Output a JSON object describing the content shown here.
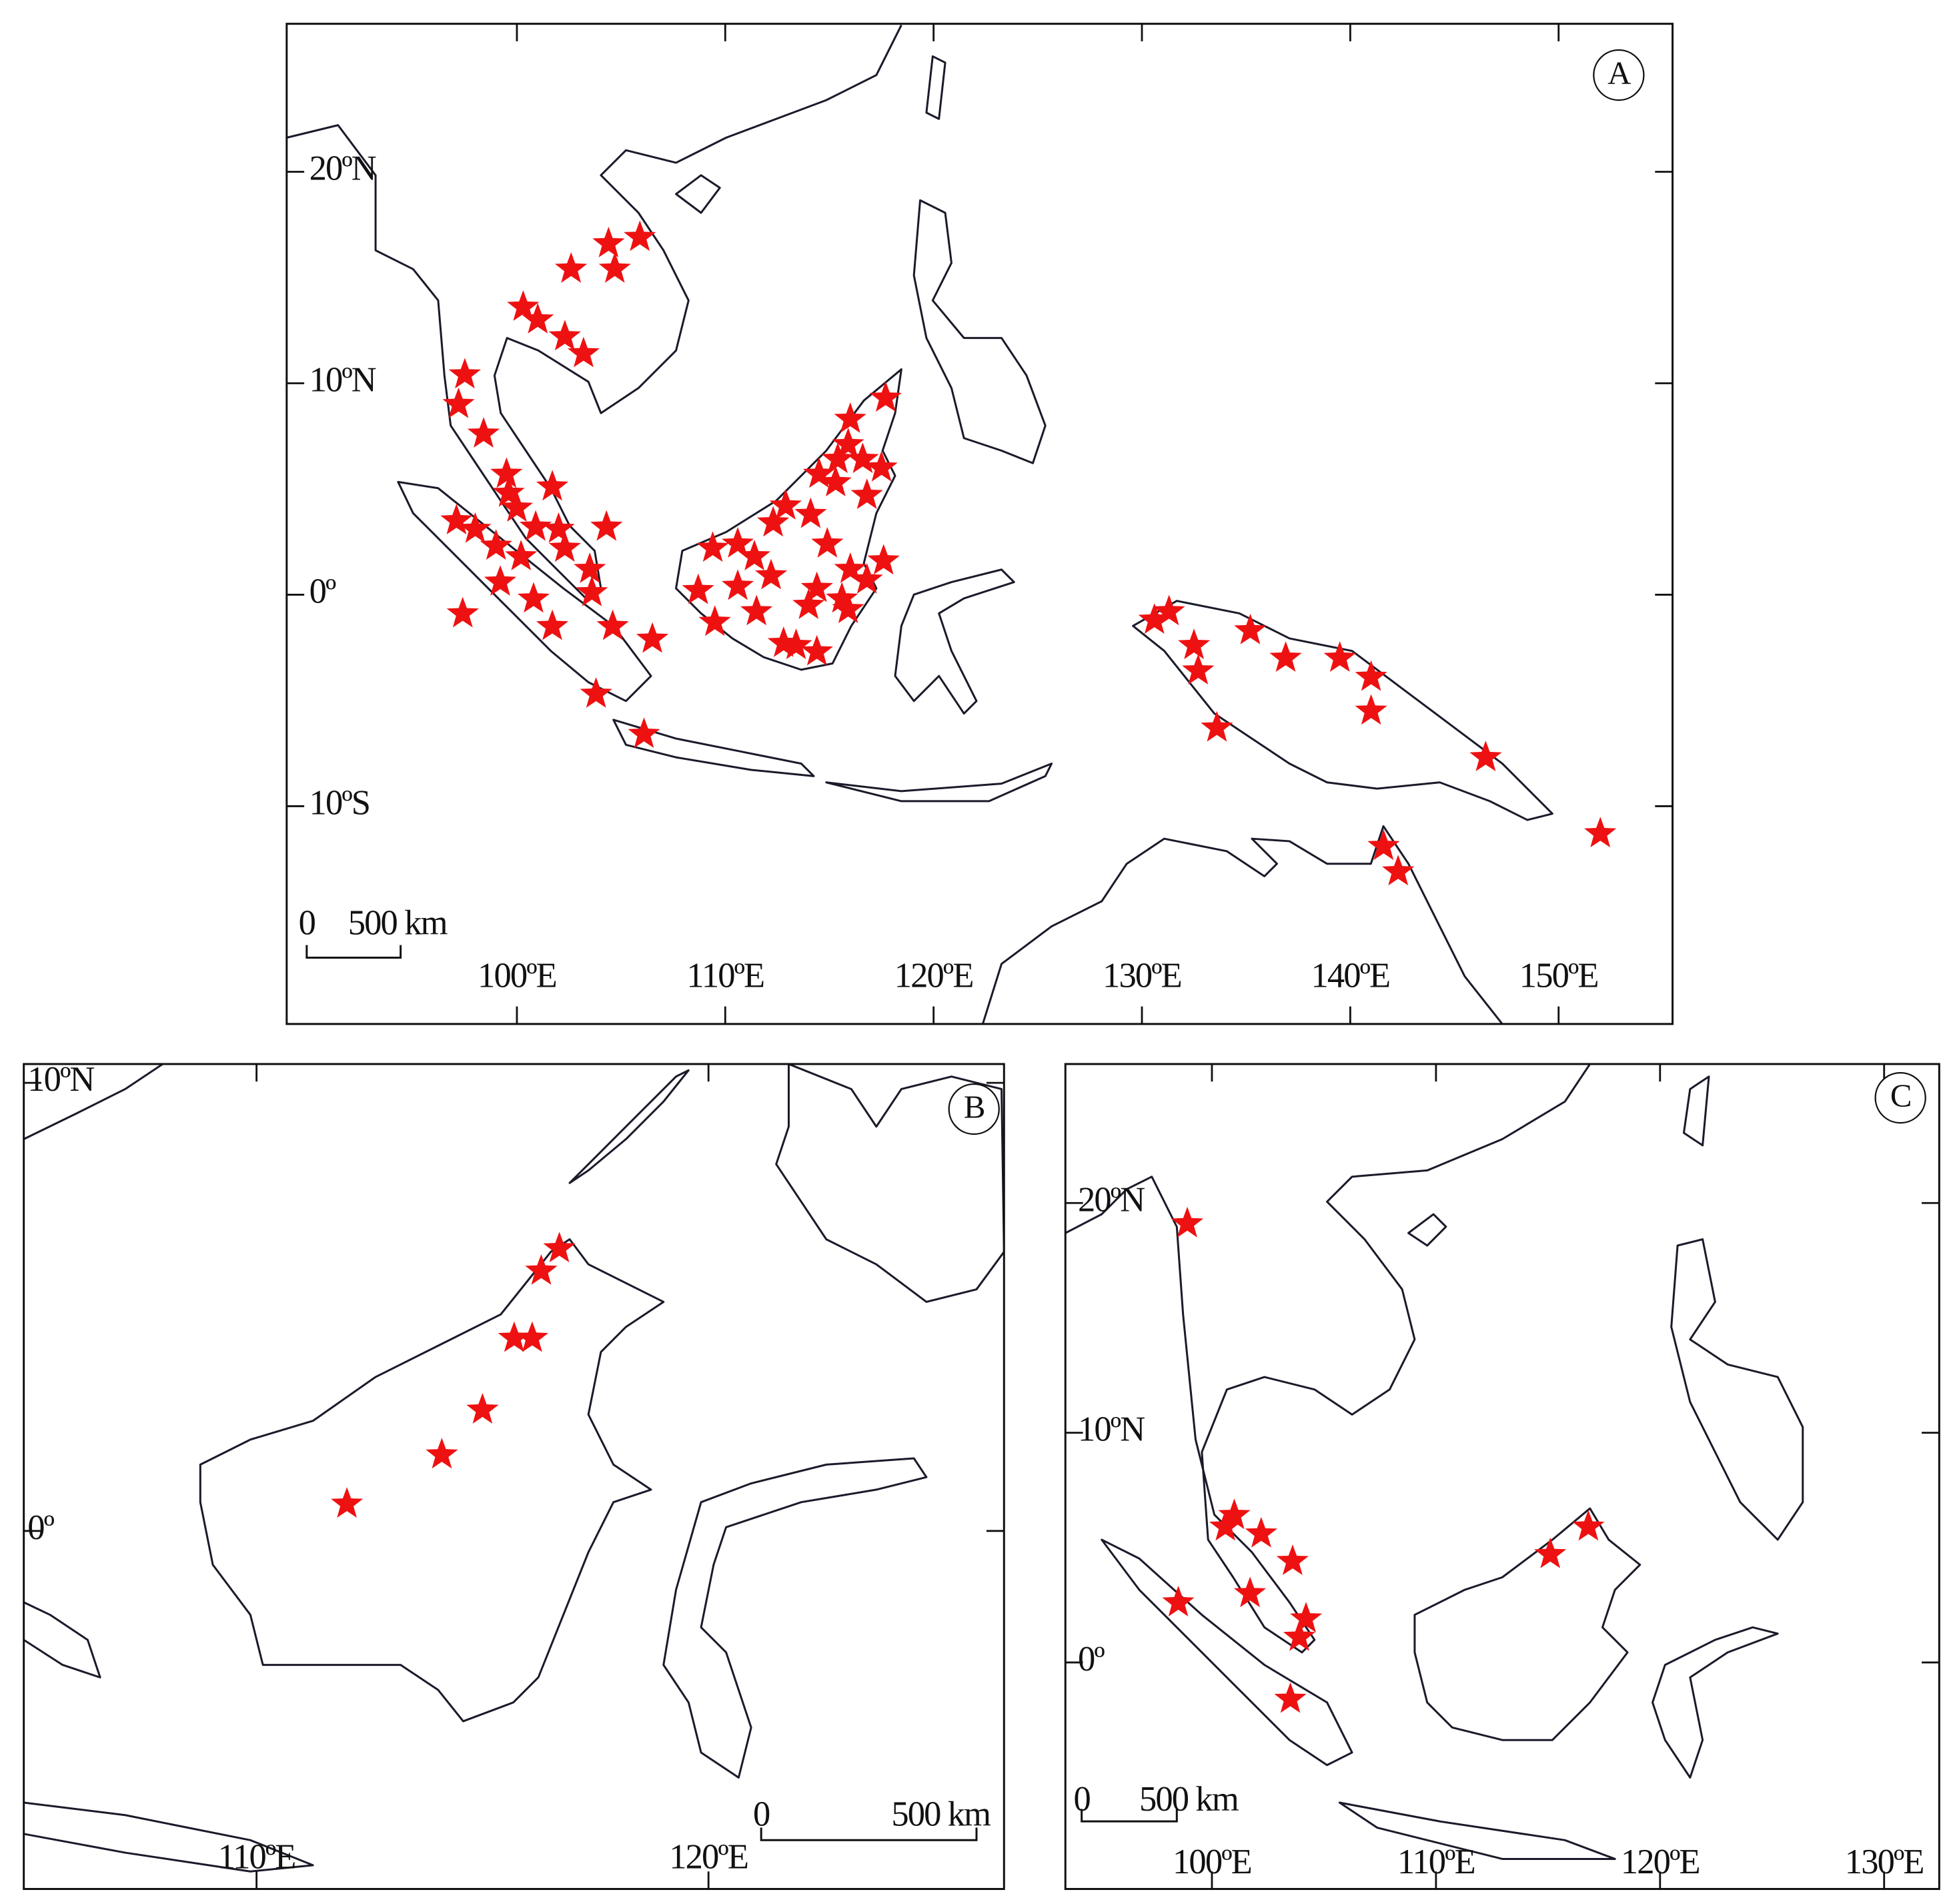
{
  "panels": [
    {
      "label": "A",
      "lonlim": [
        88.95,
        155.47
      ],
      "latlim": [
        -20.3,
        27.0
      ],
      "xticks": [
        {
          "value": 100,
          "label": "100ºE"
        },
        {
          "value": 110,
          "label": "110ºE"
        },
        {
          "value": 120,
          "label": "120ºE"
        },
        {
          "value": 130,
          "label": "130ºE"
        },
        {
          "value": 140,
          "label": "140ºE"
        },
        {
          "value": 150,
          "label": "150ºE"
        }
      ],
      "yticks": [
        {
          "value": 20,
          "label": "20ºN"
        },
        {
          "value": 10,
          "label": "10ºN"
        },
        {
          "value": 0,
          "label": "0º"
        },
        {
          "value": -10,
          "label": "10ºS"
        }
      ],
      "scale_bar": {
        "zero": 0,
        "label": "500 km"
      },
      "points": {
        "lon": [
          105.9,
          104.4,
          102.6,
          104.7,
          100.3,
          101.0,
          102.3,
          103.2,
          97.5,
          97.2,
          98.4,
          99.5,
          99.6,
          101.7,
          100.0,
          97.1,
          98.0,
          99.0,
          100.9,
          102.0,
          104.3,
          102.3,
          103.5,
          100.2,
          99.2,
          100.8,
          103.6,
          97.4,
          101.7,
          104.6,
          106.5,
          103.8,
          106.1,
          116.0,
          117.7,
          115.9,
          115.4,
          116.6,
          117.5,
          114.5,
          115.3,
          116.8,
          112.9,
          114.1,
          112.3,
          109.4,
          110.6,
          111.4,
          114.9,
          116.0,
          117.6,
          116.8,
          108.7,
          110.6,
          112.2,
          114.4,
          115.6,
          115.9,
          114.0,
          111.5,
          109.5,
          112.8,
          113.4,
          114.4,
          130.6,
          131.3,
          132.5,
          132.7,
          135.2,
          136.9,
          139.5,
          141.0,
          141.0,
          133.6,
          146.5,
          152.0,
          141.6,
          142.3
        ],
        "lat": [
          16.9,
          16.6,
          15.4,
          15.4,
          13.6,
          13.0,
          12.2,
          11.4,
          10.4,
          9.0,
          7.6,
          5.7,
          4.8,
          5.1,
          4.1,
          3.5,
          3.1,
          2.3,
          3.2,
          3.1,
          3.2,
          2.2,
          1.2,
          1.8,
          0.6,
          -0.2,
          0.1,
          -0.9,
          -1.5,
          -1.5,
          -2.1,
          -4.7,
          -6.6,
          8.3,
          9.3,
          7.1,
          6.4,
          6.4,
          6.0,
          5.7,
          5.3,
          4.7,
          4.2,
          3.8,
          3.4,
          2.2,
          2.4,
          1.8,
          2.4,
          1.2,
          1.6,
          0.7,
          0.2,
          0.4,
          0.9,
          0.3,
          -0.2,
          -0.7,
          -0.5,
          -0.8,
          -1.3,
          -2.3,
          -2.4,
          -2.7,
          -1.2,
          -0.8,
          -2.4,
          -3.6,
          -1.7,
          -3.0,
          -3.0,
          -3.9,
          -5.5,
          -6.3,
          -7.7,
          -11.3,
          -11.9,
          -13.1
        ]
      }
    },
    {
      "label": "B",
      "lonlim": [
        104.85,
        126.54
      ],
      "latlim": [
        -7.99,
        10.42
      ],
      "xticks": [
        {
          "value": 110,
          "label": "110ºE"
        },
        {
          "value": 120,
          "label": "120ºE"
        }
      ],
      "yticks": [
        {
          "value": 10,
          "label": "10ºN"
        },
        {
          "value": 0,
          "label": "0º"
        }
      ],
      "scale_bar": {
        "zero": 0,
        "label": "500 km"
      },
      "points": {
        "lon": [
          116.7,
          116.3,
          116.1,
          115.7,
          115.0,
          114.1,
          112.0
        ],
        "lat": [
          6.3,
          5.8,
          4.3,
          4.3,
          2.7,
          1.7,
          0.6
        ]
      }
    },
    {
      "label": "C",
      "lonlim": [
        93.46,
        132.46
      ],
      "latlim": [
        -9.86,
        26.05
      ],
      "xticks": [
        {
          "value": 100,
          "label": "100ºE"
        },
        {
          "value": 110,
          "label": "110ºE"
        },
        {
          "value": 120,
          "label": "120ºE"
        },
        {
          "value": 130,
          "label": "130ºE"
        }
      ],
      "yticks": [
        {
          "value": 20,
          "label": "20ºN"
        },
        {
          "value": 10,
          "label": "10ºN"
        },
        {
          "value": 0,
          "label": "0º"
        }
      ],
      "scale_bar": {
        "zero": 0,
        "label": "500 km"
      },
      "points": {
        "lon": [
          98.9,
          101.0,
          100.6,
          102.2,
          103.6,
          101.7,
          104.2,
          103.9,
          103.5,
          98.5,
          115.1,
          116.8
        ],
        "lat": [
          19.1,
          6.4,
          5.9,
          5.6,
          4.4,
          3.0,
          1.9,
          1.1,
          -1.6,
          2.6,
          4.7,
          5.9
        ]
      }
    }
  ]
}
